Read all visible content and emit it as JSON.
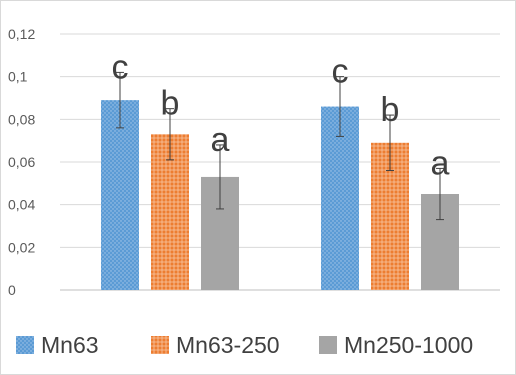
{
  "chart_data": {
    "type": "bar",
    "categories": [
      "",
      ""
    ],
    "ylim": [
      0,
      0.12
    ],
    "y_ticks": [
      "0",
      "0,02",
      "0,04",
      "0,06",
      "0,08",
      "0,1",
      "0,12"
    ],
    "grid": true,
    "legend_position": "bottom",
    "series": [
      {
        "name": "Mn63",
        "color": "#5b9bd5",
        "values": [
          0.089,
          0.086
        ],
        "errors": [
          0.013,
          0.014
        ],
        "labels": [
          "c",
          "c"
        ]
      },
      {
        "name": "Mn63-250",
        "color": "#ed7d31",
        "values": [
          0.073,
          0.069
        ],
        "errors": [
          0.012,
          0.013
        ],
        "labels": [
          "b",
          "b"
        ]
      },
      {
        "name": "Mn250-1000",
        "color": "#a5a5a5",
        "values": [
          0.053,
          0.045
        ],
        "errors": [
          0.015,
          0.012
        ],
        "labels": [
          "a",
          "a"
        ]
      }
    ]
  }
}
